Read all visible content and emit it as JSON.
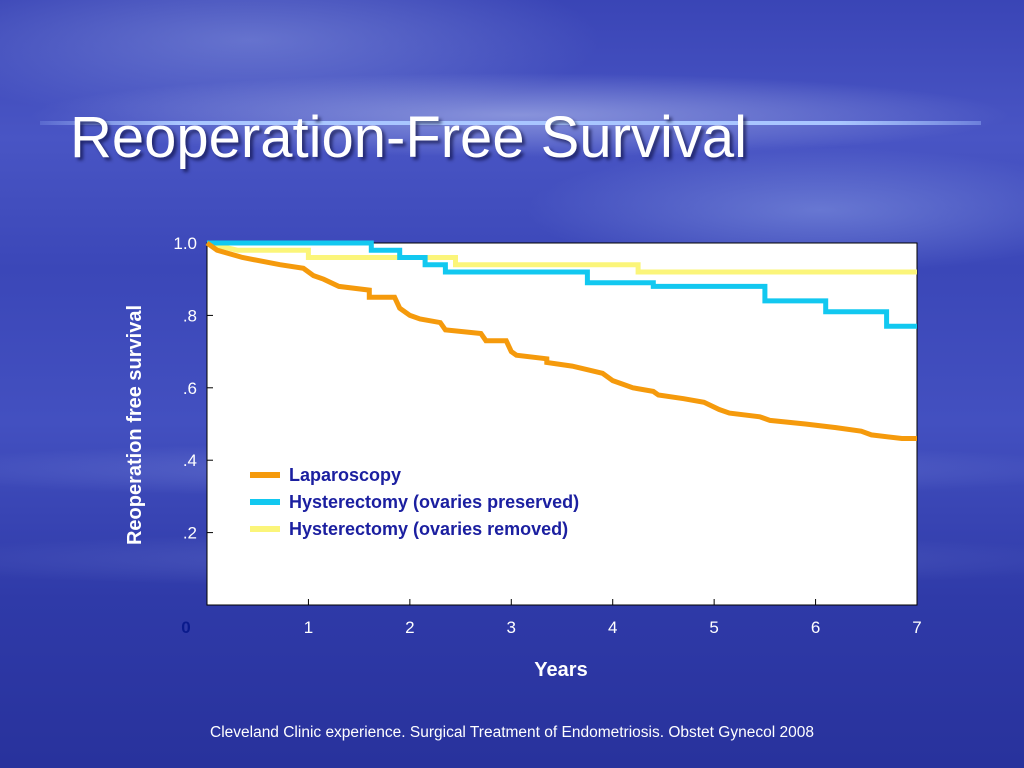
{
  "slide": {
    "title": "Reoperation-Free Survival",
    "caption": "Cleveland Clinic experience. Surgical Treatment of Endometriosis. Obstet Gynecol 2008"
  },
  "colors": {
    "background": "#3b47b8",
    "plot_background": "#ffffff",
    "axis_text": "#ffffff",
    "zero_label": "#0a1a8c",
    "legend_text": "#1b1fa0"
  },
  "chart_data": {
    "type": "line",
    "step": true,
    "xlabel": "Years",
    "ylabel": "Reoperation free survival",
    "xlim": [
      0,
      7
    ],
    "ylim": [
      0,
      1
    ],
    "x_ticks": [
      {
        "value": 0,
        "label": "0"
      },
      {
        "value": 1,
        "label": "1"
      },
      {
        "value": 2,
        "label": "2"
      },
      {
        "value": 3,
        "label": "3"
      },
      {
        "value": 4,
        "label": "4"
      },
      {
        "value": 5,
        "label": "5"
      },
      {
        "value": 6,
        "label": "6"
      },
      {
        "value": 7,
        "label": "7"
      }
    ],
    "y_ticks": [
      {
        "value": 0.2,
        "label": ".2"
      },
      {
        "value": 0.4,
        "label": ".4"
      },
      {
        "value": 0.6,
        "label": ".6"
      },
      {
        "value": 0.8,
        "label": ".8"
      },
      {
        "value": 1.0,
        "label": "1.0"
      }
    ],
    "legend_position": "lower-left inside plot",
    "series": [
      {
        "name": "Laparoscopy",
        "color": "#f59a0c",
        "points": [
          [
            0,
            1.0
          ],
          [
            0.1,
            0.98
          ],
          [
            0.35,
            0.96
          ],
          [
            0.72,
            0.94
          ],
          [
            0.95,
            0.93
          ],
          [
            1.05,
            0.91
          ],
          [
            1.15,
            0.9
          ],
          [
            1.3,
            0.88
          ],
          [
            1.6,
            0.87
          ],
          [
            1.6,
            0.85
          ],
          [
            1.85,
            0.85
          ],
          [
            1.9,
            0.82
          ],
          [
            2.0,
            0.8
          ],
          [
            2.1,
            0.79
          ],
          [
            2.3,
            0.78
          ],
          [
            2.35,
            0.76
          ],
          [
            2.7,
            0.75
          ],
          [
            2.75,
            0.73
          ],
          [
            2.95,
            0.73
          ],
          [
            3.0,
            0.7
          ],
          [
            3.05,
            0.69
          ],
          [
            3.35,
            0.68
          ],
          [
            3.35,
            0.67
          ],
          [
            3.6,
            0.66
          ],
          [
            3.75,
            0.65
          ],
          [
            3.9,
            0.64
          ],
          [
            4.0,
            0.62
          ],
          [
            4.2,
            0.6
          ],
          [
            4.4,
            0.59
          ],
          [
            4.45,
            0.58
          ],
          [
            4.7,
            0.57
          ],
          [
            4.9,
            0.56
          ],
          [
            5.05,
            0.54
          ],
          [
            5.15,
            0.53
          ],
          [
            5.45,
            0.52
          ],
          [
            5.55,
            0.51
          ],
          [
            5.9,
            0.5
          ],
          [
            6.2,
            0.49
          ],
          [
            6.45,
            0.48
          ],
          [
            6.55,
            0.47
          ],
          [
            6.85,
            0.46
          ],
          [
            7.0,
            0.46
          ]
        ]
      },
      {
        "name": "Hysterectomy (ovaries preserved)",
        "color": "#12c8f0",
        "points": [
          [
            0,
            1.0
          ],
          [
            1.62,
            1.0
          ],
          [
            1.62,
            0.98
          ],
          [
            1.9,
            0.98
          ],
          [
            1.9,
            0.96
          ],
          [
            2.15,
            0.96
          ],
          [
            2.15,
            0.94
          ],
          [
            2.35,
            0.94
          ],
          [
            2.35,
            0.92
          ],
          [
            3.75,
            0.92
          ],
          [
            3.75,
            0.89
          ],
          [
            4.4,
            0.89
          ],
          [
            4.4,
            0.88
          ],
          [
            5.5,
            0.88
          ],
          [
            5.5,
            0.84
          ],
          [
            6.1,
            0.84
          ],
          [
            6.1,
            0.81
          ],
          [
            6.7,
            0.81
          ],
          [
            6.7,
            0.77
          ],
          [
            7.0,
            0.77
          ]
        ]
      },
      {
        "name": "Hysterectomy (ovaries removed)",
        "color": "#fbf57a",
        "points": [
          [
            0,
            1.0
          ],
          [
            0.3,
            0.98
          ],
          [
            1.0,
            0.98
          ],
          [
            1.0,
            0.96
          ],
          [
            2.45,
            0.96
          ],
          [
            2.45,
            0.94
          ],
          [
            4.25,
            0.94
          ],
          [
            4.25,
            0.92
          ],
          [
            7.0,
            0.92
          ]
        ]
      }
    ]
  }
}
